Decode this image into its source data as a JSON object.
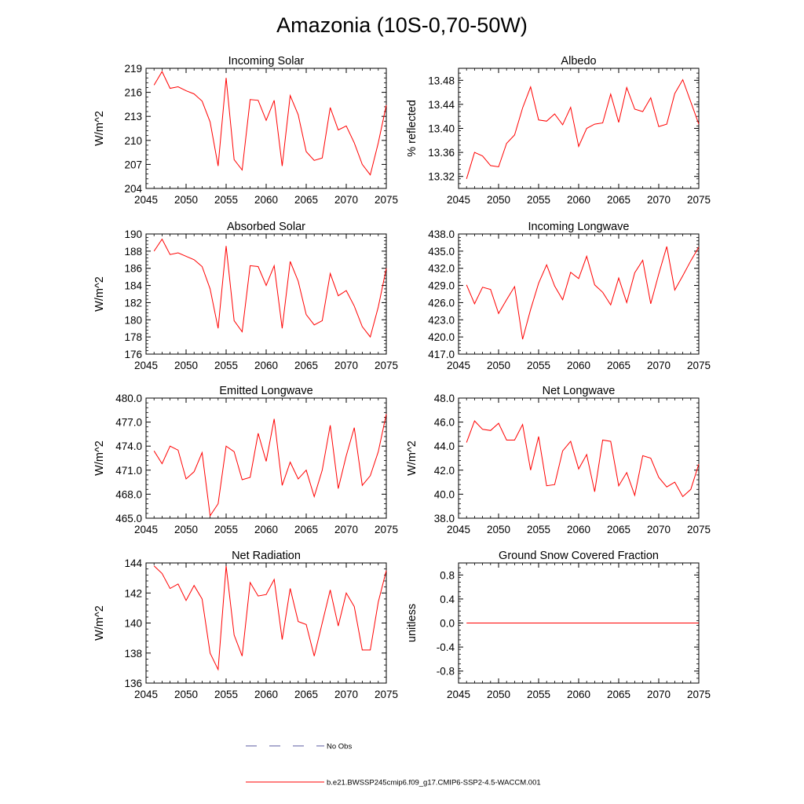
{
  "title": "Amazonia (10S-0,70-50W)",
  "line_color": "#ff0000",
  "obs_color": "#5a5aa0",
  "legend": {
    "obs_label": "No Obs",
    "model_label": "b.e21.BWSSP245cmip6.f09_g17.CMIP6-SSP2-4.5-WACCM.001"
  },
  "chart_data": [
    {
      "type": "line",
      "title": "Incoming Solar",
      "xlabel": "",
      "ylabel": "W/m^2",
      "xlim": [
        2045,
        2075
      ],
      "ylim": [
        204,
        219
      ],
      "xticks": [
        2045,
        2050,
        2055,
        2060,
        2065,
        2070,
        2075
      ],
      "yticks": [
        204,
        207,
        210,
        213,
        216,
        219
      ],
      "ytick_labels": [
        "204",
        "207",
        "210",
        "213",
        "216",
        "219"
      ],
      "x": [
        2046,
        2047,
        2048,
        2049,
        2050,
        2051,
        2052,
        2053,
        2054,
        2055,
        2056,
        2057,
        2058,
        2059,
        2060,
        2061,
        2062,
        2063,
        2064,
        2065,
        2066,
        2067,
        2068,
        2069,
        2070,
        2071,
        2072,
        2073,
        2074,
        2075
      ],
      "values": [
        216.9,
        218.6,
        216.5,
        216.7,
        216.2,
        215.8,
        214.9,
        212.3,
        206.8,
        217.8,
        207.6,
        206.3,
        215.1,
        215.0,
        212.5,
        215.0,
        206.8,
        215.6,
        213.2,
        208.6,
        207.5,
        207.8,
        214.1,
        211.3,
        211.8,
        209.7,
        207.0,
        205.7,
        209.7,
        214.4
      ]
    },
    {
      "type": "line",
      "title": "Albedo",
      "xlabel": "",
      "ylabel": "% reflected",
      "xlim": [
        2045,
        2075
      ],
      "ylim": [
        13.3,
        13.5
      ],
      "xticks": [
        2045,
        2050,
        2055,
        2060,
        2065,
        2070,
        2075
      ],
      "yticks": [
        13.32,
        13.36,
        13.4,
        13.44,
        13.48
      ],
      "ytick_labels": [
        "13.32",
        "13.36",
        "13.40",
        "13.44",
        "13.48"
      ],
      "x": [
        2046,
        2047,
        2048,
        2049,
        2050,
        2051,
        2052,
        2053,
        2054,
        2055,
        2056,
        2057,
        2058,
        2059,
        2060,
        2061,
        2062,
        2063,
        2064,
        2065,
        2066,
        2067,
        2068,
        2069,
        2070,
        2071,
        2072,
        2073,
        2074,
        2075
      ],
      "values": [
        13.316,
        13.36,
        13.354,
        13.338,
        13.336,
        13.375,
        13.389,
        13.434,
        13.469,
        13.414,
        13.412,
        13.424,
        13.406,
        13.435,
        13.37,
        13.4,
        13.407,
        13.409,
        13.457,
        13.41,
        13.468,
        13.432,
        13.428,
        13.451,
        13.403,
        13.407,
        13.458,
        13.481,
        13.444,
        13.407
      ]
    },
    {
      "type": "line",
      "title": "Absorbed Solar",
      "xlabel": "",
      "ylabel": "W/m^2",
      "xlim": [
        2045,
        2075
      ],
      "ylim": [
        176,
        190
      ],
      "xticks": [
        2045,
        2050,
        2055,
        2060,
        2065,
        2070,
        2075
      ],
      "yticks": [
        176,
        178,
        180,
        182,
        184,
        186,
        188,
        190
      ],
      "ytick_labels": [
        "176",
        "178",
        "180",
        "182",
        "184",
        "186",
        "188",
        "190"
      ],
      "x": [
        2046,
        2047,
        2048,
        2049,
        2050,
        2051,
        2052,
        2053,
        2054,
        2055,
        2056,
        2057,
        2058,
        2059,
        2060,
        2061,
        2062,
        2063,
        2064,
        2065,
        2066,
        2067,
        2068,
        2069,
        2070,
        2071,
        2072,
        2073,
        2074,
        2075
      ],
      "values": [
        188.0,
        189.4,
        187.6,
        187.8,
        187.4,
        187.0,
        186.2,
        183.6,
        179.0,
        188.6,
        179.9,
        178.6,
        186.3,
        186.2,
        184.0,
        186.3,
        179.0,
        186.8,
        184.5,
        180.6,
        179.4,
        179.9,
        185.4,
        182.8,
        183.4,
        181.6,
        179.2,
        178.0,
        181.5,
        186.0
      ]
    },
    {
      "type": "line",
      "title": "Incoming Longwave",
      "xlabel": "",
      "ylabel": "",
      "xlim": [
        2045,
        2075
      ],
      "ylim": [
        417,
        438
      ],
      "xticks": [
        2045,
        2050,
        2055,
        2060,
        2065,
        2070,
        2075
      ],
      "yticks": [
        417,
        420,
        423,
        426,
        429,
        432,
        435,
        438
      ],
      "ytick_labels": [
        "417.0",
        "420.0",
        "423.0",
        "426.0",
        "429.0",
        "432.0",
        "435.0",
        "438.0"
      ],
      "x": [
        2046,
        2047,
        2048,
        2049,
        2050,
        2051,
        2052,
        2053,
        2054,
        2055,
        2056,
        2057,
        2058,
        2059,
        2060,
        2061,
        2062,
        2063,
        2064,
        2065,
        2066,
        2067,
        2068,
        2069,
        2070,
        2071,
        2072,
        2073,
        2074,
        2075
      ],
      "values": [
        429.1,
        425.8,
        428.7,
        428.3,
        424.1,
        426.5,
        428.8,
        419.6,
        424.8,
        429.4,
        432.6,
        428.9,
        426.5,
        431.3,
        430.2,
        434.1,
        429.1,
        427.8,
        425.6,
        430.3,
        426.0,
        431.2,
        433.4,
        425.8,
        431.0,
        435.8,
        428.2,
        430.7,
        433.3,
        435.7
      ]
    },
    {
      "type": "line",
      "title": "Emitted Longwave",
      "xlabel": "",
      "ylabel": "W/m^2",
      "xlim": [
        2045,
        2075
      ],
      "ylim": [
        465,
        480
      ],
      "xticks": [
        2045,
        2050,
        2055,
        2060,
        2065,
        2070,
        2075
      ],
      "yticks": [
        465,
        468,
        471,
        474,
        477,
        480
      ],
      "ytick_labels": [
        "465.0",
        "468.0",
        "471.0",
        "474.0",
        "477.0",
        "480.0"
      ],
      "x": [
        2046,
        2047,
        2048,
        2049,
        2050,
        2051,
        2052,
        2053,
        2054,
        2055,
        2056,
        2057,
        2058,
        2059,
        2060,
        2061,
        2062,
        2063,
        2064,
        2065,
        2066,
        2067,
        2068,
        2069,
        2070,
        2071,
        2072,
        2073,
        2074,
        2075
      ],
      "values": [
        473.4,
        471.8,
        474.0,
        473.5,
        469.9,
        470.8,
        473.2,
        465.3,
        466.8,
        474.0,
        473.3,
        469.8,
        470.1,
        475.6,
        472.1,
        477.4,
        469.1,
        472.0,
        469.9,
        471.0,
        467.7,
        471.0,
        476.6,
        468.7,
        472.8,
        476.3,
        469.1,
        470.3,
        473.3,
        478.0
      ]
    },
    {
      "type": "line",
      "title": "Net Longwave",
      "xlabel": "",
      "ylabel": "W/m^2",
      "xlim": [
        2045,
        2075
      ],
      "ylim": [
        38,
        48
      ],
      "xticks": [
        2045,
        2050,
        2055,
        2060,
        2065,
        2070,
        2075
      ],
      "yticks": [
        38,
        40,
        42,
        44,
        46,
        48
      ],
      "ytick_labels": [
        "38.0",
        "40.0",
        "42.0",
        "44.0",
        "46.0",
        "48.0"
      ],
      "x": [
        2046,
        2047,
        2048,
        2049,
        2050,
        2051,
        2052,
        2053,
        2054,
        2055,
        2056,
        2057,
        2058,
        2059,
        2060,
        2061,
        2062,
        2063,
        2064,
        2065,
        2066,
        2067,
        2068,
        2069,
        2070,
        2071,
        2072,
        2073,
        2074,
        2075
      ],
      "values": [
        44.3,
        46.1,
        45.4,
        45.3,
        45.9,
        44.5,
        44.5,
        45.8,
        42.0,
        44.8,
        40.7,
        40.8,
        43.6,
        44.4,
        42.1,
        43.3,
        40.2,
        44.5,
        44.4,
        40.7,
        41.8,
        39.9,
        43.2,
        43.0,
        41.4,
        40.6,
        41.0,
        39.8,
        40.4,
        42.5
      ]
    },
    {
      "type": "line",
      "title": "Net Radiation",
      "xlabel": "",
      "ylabel": "W/m^2",
      "xlim": [
        2045,
        2075
      ],
      "ylim": [
        136,
        144
      ],
      "xticks": [
        2045,
        2050,
        2055,
        2060,
        2065,
        2070,
        2075
      ],
      "yticks": [
        136,
        138,
        140,
        142,
        144
      ],
      "ytick_labels": [
        "136",
        "138",
        "140",
        "142",
        "144"
      ],
      "x": [
        2046,
        2047,
        2048,
        2049,
        2050,
        2051,
        2052,
        2053,
        2054,
        2055,
        2056,
        2057,
        2058,
        2059,
        2060,
        2061,
        2062,
        2063,
        2064,
        2065,
        2066,
        2067,
        2068,
        2069,
        2070,
        2071,
        2072,
        2073,
        2074,
        2075
      ],
      "values": [
        143.8,
        143.3,
        142.3,
        142.6,
        141.5,
        142.5,
        141.6,
        138.0,
        136.9,
        143.8,
        139.2,
        137.8,
        142.7,
        141.8,
        141.9,
        142.9,
        138.9,
        142.3,
        140.1,
        139.9,
        137.8,
        140.0,
        142.2,
        139.8,
        142.0,
        141.1,
        138.2,
        138.2,
        141.4,
        143.5
      ]
    },
    {
      "type": "line",
      "title": "Ground Snow Covered Fraction",
      "xlabel": "",
      "ylabel": "unitless",
      "xlim": [
        2045,
        2075
      ],
      "ylim": [
        -1.0,
        1.0
      ],
      "xticks": [
        2045,
        2050,
        2055,
        2060,
        2065,
        2070,
        2075
      ],
      "yticks": [
        -0.8,
        -0.4,
        0.0,
        0.4,
        0.8
      ],
      "ytick_labels": [
        "-0.8",
        "-0.4",
        "0.0",
        "0.4",
        "0.8"
      ],
      "x": [
        2046,
        2047,
        2048,
        2049,
        2050,
        2051,
        2052,
        2053,
        2054,
        2055,
        2056,
        2057,
        2058,
        2059,
        2060,
        2061,
        2062,
        2063,
        2064,
        2065,
        2066,
        2067,
        2068,
        2069,
        2070,
        2071,
        2072,
        2073,
        2074,
        2075
      ],
      "values": [
        0,
        0,
        0,
        0,
        0,
        0,
        0,
        0,
        0,
        0,
        0,
        0,
        0,
        0,
        0,
        0,
        0,
        0,
        0,
        0,
        0,
        0,
        0,
        0,
        0,
        0,
        0,
        0,
        0,
        0
      ]
    }
  ]
}
